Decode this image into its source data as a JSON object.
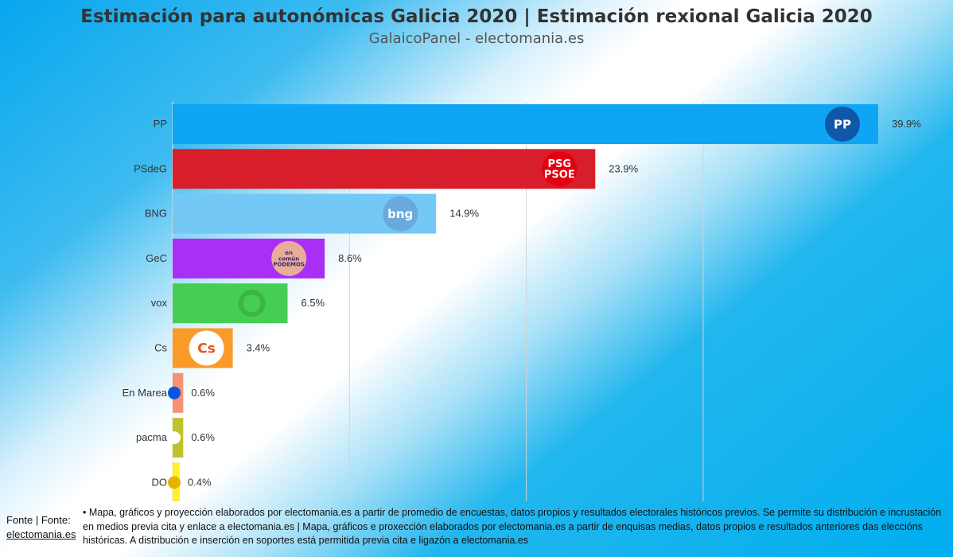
{
  "header": {
    "title": "Estimación para autonómicas Galicia 2020 | Estimación rexional Galicia 2020",
    "subtitle": "GalaicoPanel - electomania.es"
  },
  "chart_data": {
    "type": "bar",
    "orientation": "horizontal",
    "categories": [
      "PP",
      "PSdeG",
      "BNG",
      "GeC",
      "vox",
      "Cs",
      "En Marea",
      "pacma",
      "DO"
    ],
    "values": [
      39.9,
      23.9,
      14.9,
      8.6,
      6.5,
      3.4,
      0.6,
      0.6,
      0.4
    ],
    "labels": [
      "39.9%",
      "23.9%",
      "14.9%",
      "8.6%",
      "6.5%",
      "3.4%",
      "0.6%",
      "0.6%",
      "0.4%"
    ],
    "colors": [
      "#0ea5f4",
      "#d81e2a",
      "#74c8f5",
      "#a92ff7",
      "#44cf52",
      "#fa9a28",
      "#f59272",
      "#bfc22d",
      "#fff12a"
    ],
    "logos": [
      "PP",
      "PSG PSOE",
      "bng",
      "en común PODEMOS",
      "vox",
      "Cs",
      "",
      "",
      ""
    ],
    "xlim": [
      0,
      40
    ],
    "gridlines": [
      10,
      20,
      30
    ],
    "grid": true,
    "xlabel": "",
    "ylabel": ""
  },
  "footer": {
    "source_label": "Fonte | Fonte:",
    "source_link": "electomania.es",
    "note": "• Mapa, gráficos y proyección elaborados por electomania.es a partir de promedio de encuestas, datos propios y resultados electorales históricos previos. Se permite su distribución e incrustación en medios previa cita y enlace a electomania.es | Mapa, gráficos e proxección elaborados por electomania.es a partir de enquisas medias, datos propios e resultados anteriores das eleccións históricas. A distribución e inserción en soportes está permitida previa cita e ligazón a electomania.es"
  }
}
